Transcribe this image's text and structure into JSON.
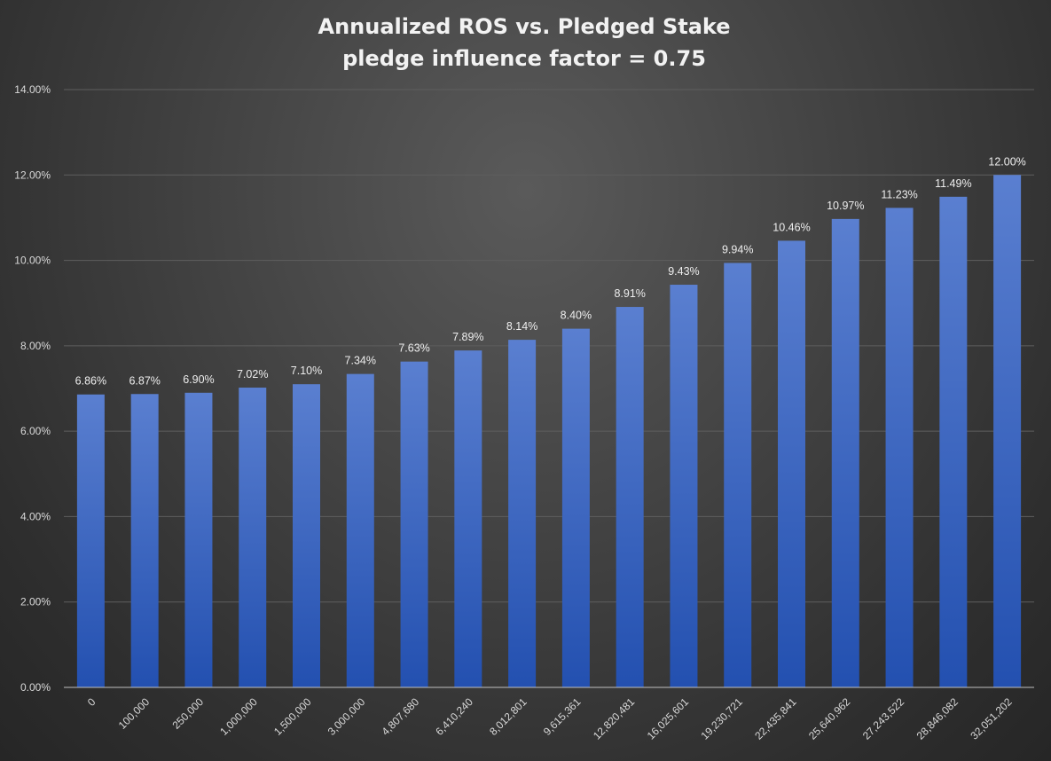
{
  "chart_data": {
    "type": "bar",
    "title": "Annualized ROS vs. Pledged Stake",
    "subtitle": "pledge influence factor = 0.75",
    "xlabel": "",
    "ylabel": "",
    "categories": [
      "0",
      "100,000",
      "250,000",
      "1,000,000",
      "1,500,000",
      "3,000,000",
      "4,807,680",
      "6,410,240",
      "8,012,801",
      "9,615,361",
      "12,820,481",
      "16,025,601",
      "19,230,721",
      "22,435,841",
      "25,640,962",
      "27,243,522",
      "28,846,082",
      "32,051,202"
    ],
    "values": [
      6.86,
      6.87,
      6.9,
      7.02,
      7.1,
      7.34,
      7.63,
      7.89,
      8.14,
      8.4,
      8.91,
      9.43,
      9.94,
      10.46,
      10.97,
      11.23,
      11.49,
      12.0
    ],
    "data_labels": [
      "6.86%",
      "6.87%",
      "6.90%",
      "7.02%",
      "7.10%",
      "7.34%",
      "7.63%",
      "7.89%",
      "8.14%",
      "8.40%",
      "8.91%",
      "9.43%",
      "9.94%",
      "10.46%",
      "10.97%",
      "11.23%",
      "11.49%",
      "12.00%"
    ],
    "ylim": [
      0,
      14
    ],
    "yticks": [
      0,
      2,
      4,
      6,
      8,
      10,
      12,
      14
    ],
    "ytick_labels": [
      "0.00%",
      "2.00%",
      "4.00%",
      "6.00%",
      "8.00%",
      "10.00%",
      "12.00%",
      "14.00%"
    ],
    "grid": true,
    "legend": "none",
    "colors": {
      "bar_top": "#5a7fd0",
      "bar_bottom": "#2350b0",
      "background": "#3a3a3a"
    }
  }
}
